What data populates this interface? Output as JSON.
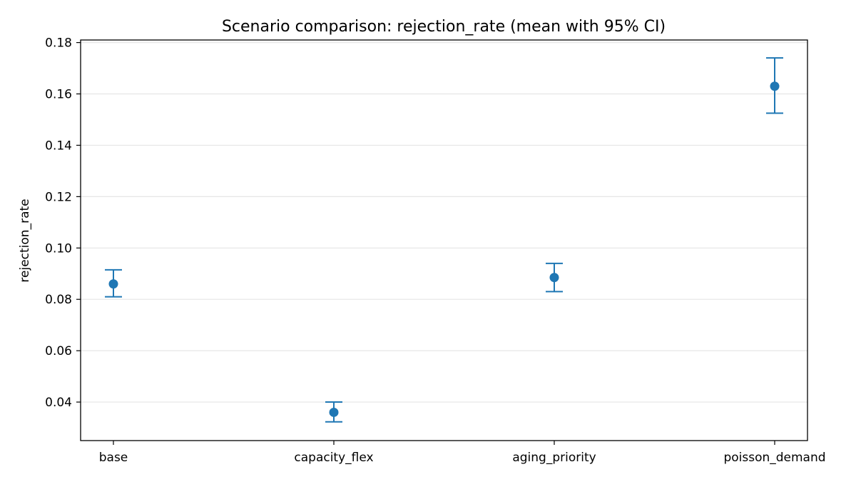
{
  "chart_data": {
    "type": "scatter",
    "title": "Scenario comparison: rejection_rate (mean with 95% CI)",
    "xlabel": "",
    "ylabel": "rejection_rate",
    "categories": [
      "base",
      "capacity_flex",
      "aging_priority",
      "poisson_demand"
    ],
    "series": [
      {
        "values": [
          0.086,
          0.036,
          0.0885,
          0.163
        ],
        "ci_low": [
          0.081,
          0.0323,
          0.083,
          0.1525
        ],
        "ci_high": [
          0.0915,
          0.04,
          0.094,
          0.174
        ]
      }
    ],
    "ylim": [
      0.025,
      0.181
    ],
    "yticks": [
      "0.04",
      "0.06",
      "0.08",
      "0.10",
      "0.12",
      "0.14",
      "0.16",
      "0.18"
    ],
    "grid": "horizontal",
    "colors": {
      "series": "#1f77b4",
      "grid": "#e6e6e6",
      "axis": "#000000"
    }
  }
}
